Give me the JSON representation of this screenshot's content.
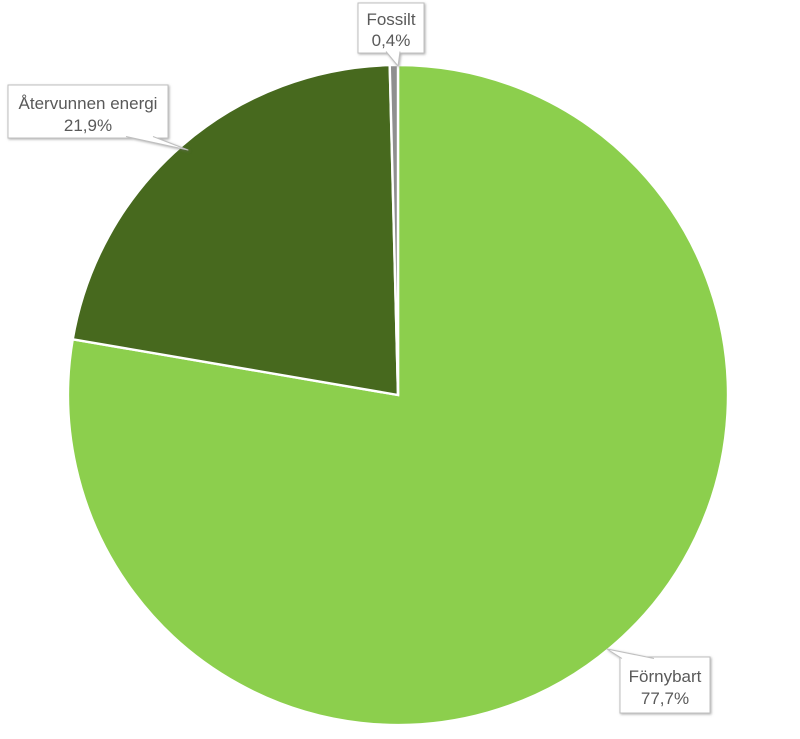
{
  "background_color": "#FFFFFF",
  "chart_data": {
    "type": "pie",
    "title": "",
    "categories": [
      "Förnybart",
      "Återvunnen energi",
      "Fossilt"
    ],
    "values": [
      77.7,
      21.9,
      0.4
    ],
    "unit": "%",
    "decimal_separator": ",",
    "start_angle_deg": 0,
    "direction": "clockwise",
    "legend_position": "none",
    "label_style": "callout boxes with leader pointers",
    "slice_border_color": "#FFFFFF",
    "label_text_color": "#595959",
    "callout_border_color": "#BFBFBF",
    "callout_fill_color": "#FFFFFF",
    "slices": [
      {
        "label": "Förnybart",
        "value": 77.7,
        "display_value": "77,7%",
        "color": "#8CCF4D"
      },
      {
        "label": "Återvunnen energi",
        "value": 21.9,
        "display_value": "21,9%",
        "color": "#47691E"
      },
      {
        "label": "Fossilt",
        "value": 0.4,
        "display_value": "0,4%",
        "color": "#8F8F8F"
      }
    ]
  }
}
